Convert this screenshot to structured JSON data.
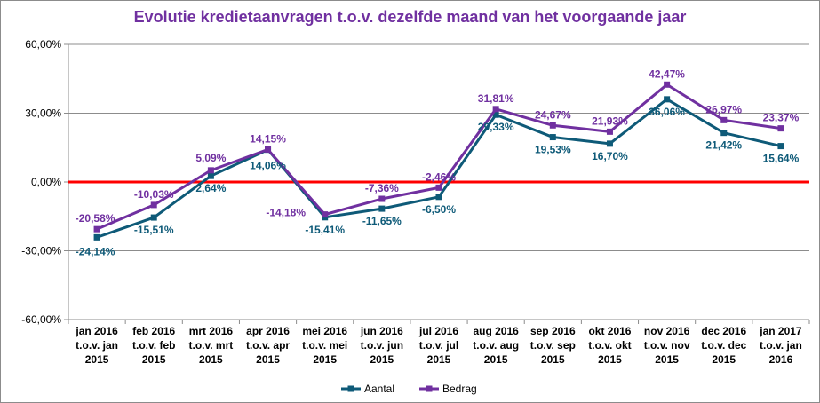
{
  "chart_data": {
    "type": "line",
    "title": "Evolutie kredietaanvragen t.o.v. dezelfde maand van het voorgaande jaar",
    "categories": [
      [
        "jan 2016",
        "t.o.v. jan",
        "2015"
      ],
      [
        "feb 2016",
        "t.o.v. feb",
        "2015"
      ],
      [
        "mrt 2016",
        "t.o.v. mrt",
        "2015"
      ],
      [
        "apr 2016",
        "t.o.v. apr",
        "2015"
      ],
      [
        "mei 2016",
        "t.o.v. mei",
        "2015"
      ],
      [
        "jun 2016",
        "t.o.v. jun",
        "2015"
      ],
      [
        "jul 2016",
        "t.o.v. jul",
        "2015"
      ],
      [
        "aug 2016",
        "t.o.v. aug",
        "2015"
      ],
      [
        "sep 2016",
        "t.o.v. sep",
        "2015"
      ],
      [
        "okt 2016",
        "t.o.v. okt",
        "2015"
      ],
      [
        "nov 2016",
        "t.o.v. nov",
        "2015"
      ],
      [
        "dec 2016",
        "t.o.v. dec",
        "2015"
      ],
      [
        "jan 2017",
        "t.o.v. jan",
        "2016"
      ]
    ],
    "series": [
      {
        "name": "Aantal",
        "color": "#0e5a78",
        "values": [
          -24.14,
          -15.51,
          2.64,
          14.06,
          -15.41,
          -11.65,
          -6.5,
          29.33,
          19.53,
          16.7,
          36.06,
          21.42,
          15.64
        ],
        "labels": [
          "-24,14%",
          "-15,51%",
          "2,64%",
          "14,06%",
          "-15,41%",
          "-11,65%",
          "-6,50%",
          "29,33%",
          "19,53%",
          "16,70%",
          "36,06%",
          "21,42%",
          "15,64%"
        ]
      },
      {
        "name": "Bedrag",
        "color": "#7030a0",
        "values": [
          -20.58,
          -10.03,
          5.09,
          14.15,
          -14.18,
          -7.36,
          -2.46,
          31.81,
          24.67,
          21.93,
          42.47,
          26.97,
          23.37
        ],
        "labels": [
          "-20,58%",
          "-10,03%",
          "5,09%",
          "14,15%",
          "-14,18%",
          "-7,36%",
          "-2,46%",
          "31,81%",
          "24,67%",
          "21,93%",
          "42,47%",
          "26,97%",
          "23,37%"
        ]
      }
    ],
    "ylim": [
      -60,
      60
    ],
    "yticks": [
      60,
      30,
      0,
      -30,
      -60
    ],
    "ytick_labels": [
      "60,00%",
      "30,00%",
      "0,00%",
      "-30,00%",
      "-60,00%"
    ],
    "grid": true,
    "zero_line_color": "#ff0000",
    "legend": "bottom-center"
  }
}
